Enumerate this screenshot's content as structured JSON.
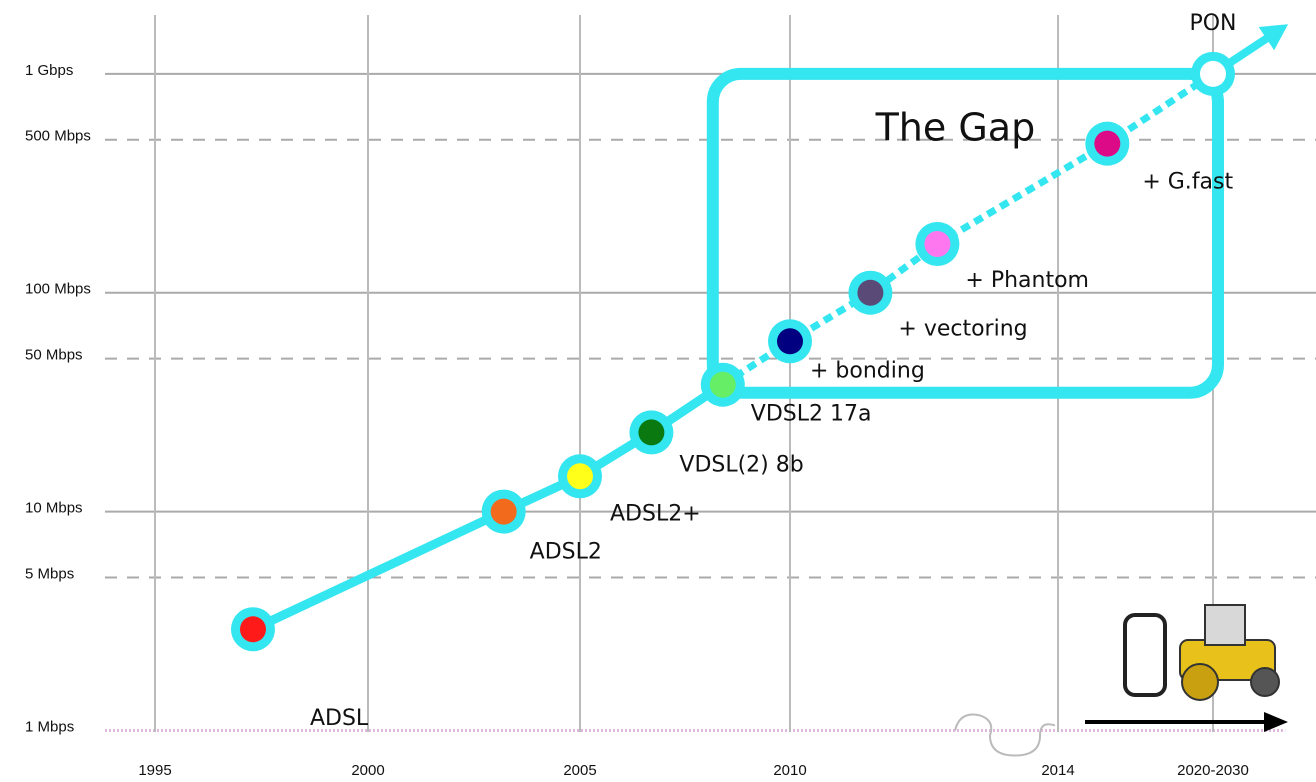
{
  "chart_data": {
    "type": "line",
    "x": [
      1997.3,
      2003.2,
      2005,
      2006.7,
      2008.4,
      2010,
      2011.2,
      2012.2,
      2017.5,
      2025
    ],
    "values": [
      2.9,
      10,
      14.5,
      23,
      38,
      60,
      100,
      167,
      480,
      1000
    ],
    "point_names": [
      "ADSL",
      "ADSL2",
      "ADSL2+",
      "VDSL(2) 8b",
      "VDSL2 17a",
      "+ bonding",
      "+ vectoring",
      "+ Phantom",
      "+ G.fast",
      "PON"
    ],
    "point_colors": [
      "#ff1a1a",
      "#f26b1d",
      "#ffff1a",
      "#0a7a10",
      "#66ee66",
      "#000080",
      "#5a4a78",
      "#ff77ee",
      "#dd0a88",
      "#ffffff"
    ],
    "line_color": "#33e6f0",
    "annotation": "The Gap",
    "xlim": [
      1994,
      2028
    ],
    "xticks": [
      1995,
      2000,
      2005,
      2010,
      2014,
      {
        "value": 2025,
        "label": "2020-2030"
      }
    ],
    "ylim": [
      0.6,
      2000
    ],
    "log_y": true,
    "yticks": [
      {
        "value": 1,
        "label": "1 Mbps"
      },
      {
        "value": 5,
        "label": "5 Mbps"
      },
      {
        "value": 10,
        "label": "10 Mbps"
      },
      {
        "value": 50,
        "label": "50 Mbps"
      },
      {
        "value": 100,
        "label": "100 Mbps"
      },
      {
        "value": 500,
        "label": "500 Mbps"
      },
      {
        "value": 1000,
        "label": "1 Gbps"
      }
    ],
    "grid": true
  }
}
